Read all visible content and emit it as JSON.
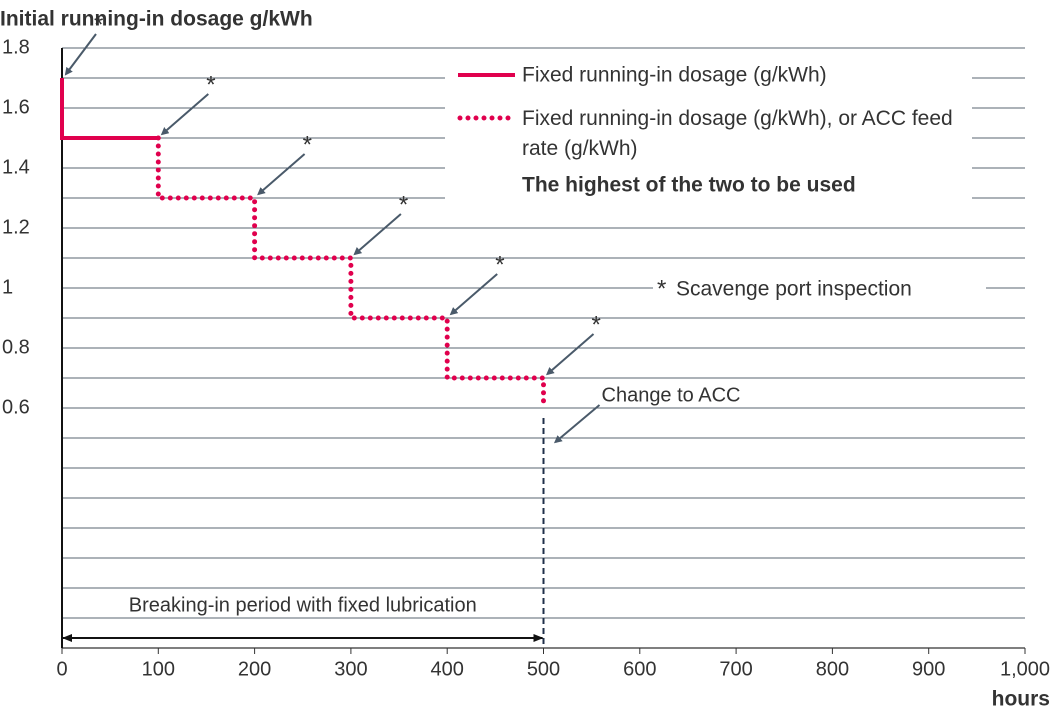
{
  "chart_data": {
    "type": "line",
    "y_axis_label": "Initial running-in dosage g/kWh",
    "x_axis_label": "hours",
    "xlim": [
      0,
      1000
    ],
    "xticks": [
      0,
      100,
      200,
      300,
      400,
      500,
      600,
      700,
      800,
      900,
      {
        "value": 1000,
        "label": "1,000"
      }
    ],
    "ylim": [
      -0.2,
      1.8
    ],
    "yticks": [
      0.6,
      0.8,
      1,
      1.2,
      1.4,
      1.6,
      1.8
    ],
    "minor_yticks": [
      -0.1,
      0,
      0.1,
      0.2,
      0.3,
      0.4,
      0.5,
      0.7,
      0.9,
      1.1,
      1.3,
      1.5,
      1.7
    ],
    "grid": true,
    "series": [
      {
        "name": "Fixed running-in dosage (g/kWh)",
        "color": "#e0004d",
        "style": "solid",
        "x": [
          0,
          0,
          100
        ],
        "values": [
          1.7,
          1.5,
          1.5
        ]
      },
      {
        "name": "Fixed running-in dosage (g/kWh), or ACC feed rate (g/kWh)",
        "color": "#e0004d",
        "style": "dotted",
        "x": [
          100,
          100,
          200,
          200,
          300,
          300,
          400,
          400,
          500,
          500
        ],
        "values": [
          1.5,
          1.3,
          1.3,
          1.1,
          1.1,
          0.9,
          0.9,
          0.7,
          0.7,
          0.6
        ]
      }
    ],
    "legend_note": "The highest of the two to be used",
    "inspection_markers": [
      "*",
      "*",
      "*",
      "*",
      "*",
      "*"
    ],
    "note_marker": "*",
    "note": "Scavenge port inspection",
    "change_annotation": {
      "text": "Change to ACC",
      "x": 500
    },
    "period_annotation": {
      "text": "Breaking-in period with fixed lubrication",
      "x": [
        0,
        500
      ]
    }
  }
}
